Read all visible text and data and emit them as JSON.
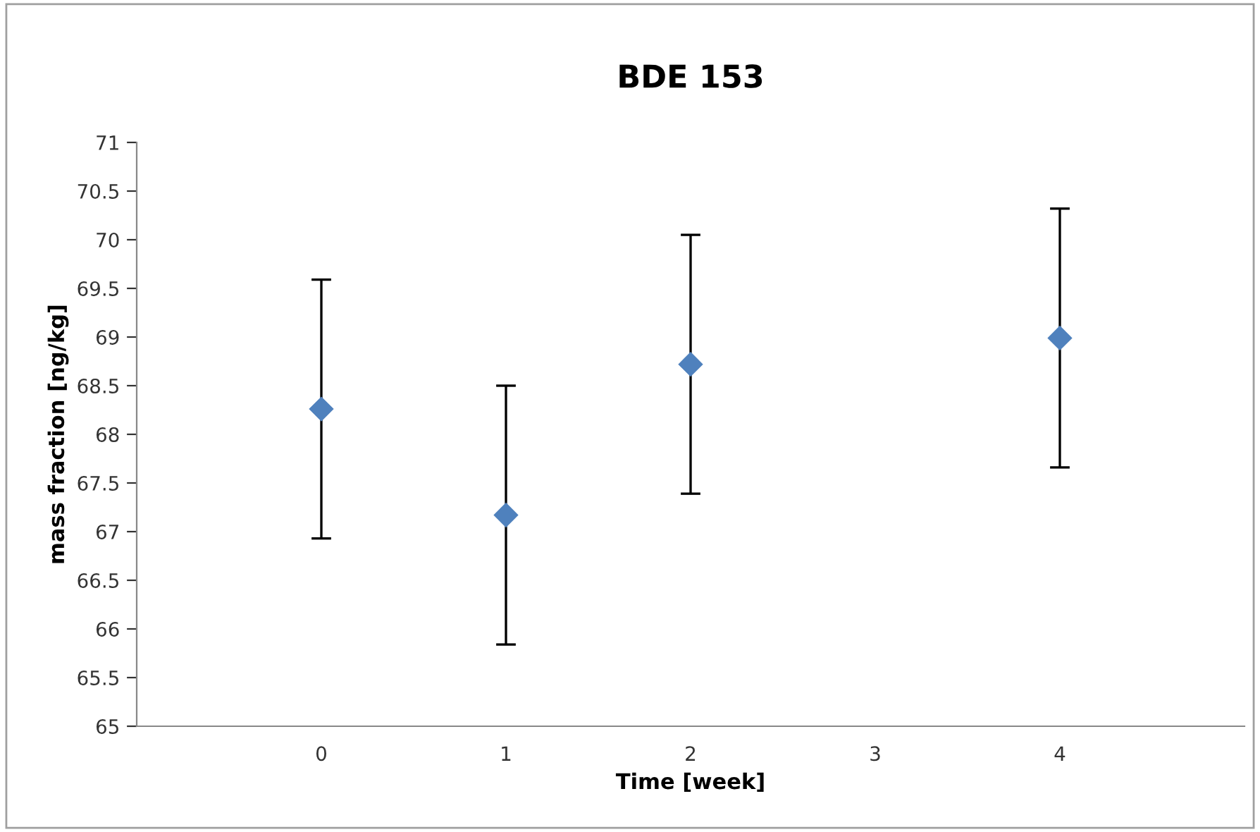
{
  "chart_data": {
    "type": "scatter",
    "title": "BDE 153",
    "xlabel": "Time [week]",
    "ylabel": "mass fraction [ng/kg]",
    "x": [
      0,
      1,
      2,
      4
    ],
    "values": [
      68.26,
      67.17,
      68.72,
      68.99
    ],
    "errors": [
      1.33,
      1.33,
      1.33,
      1.33
    ],
    "color": "#4f81bd",
    "marker": "diamond",
    "xlim": [
      -1,
      5
    ],
    "xticks": [
      0,
      1,
      2,
      3,
      4
    ],
    "ylim": [
      65,
      71
    ],
    "yticks": [
      65,
      65.5,
      66,
      66.5,
      67,
      67.5,
      68,
      68.5,
      69,
      69.5,
      70,
      70.5,
      71
    ],
    "grid": false,
    "legend": false
  }
}
